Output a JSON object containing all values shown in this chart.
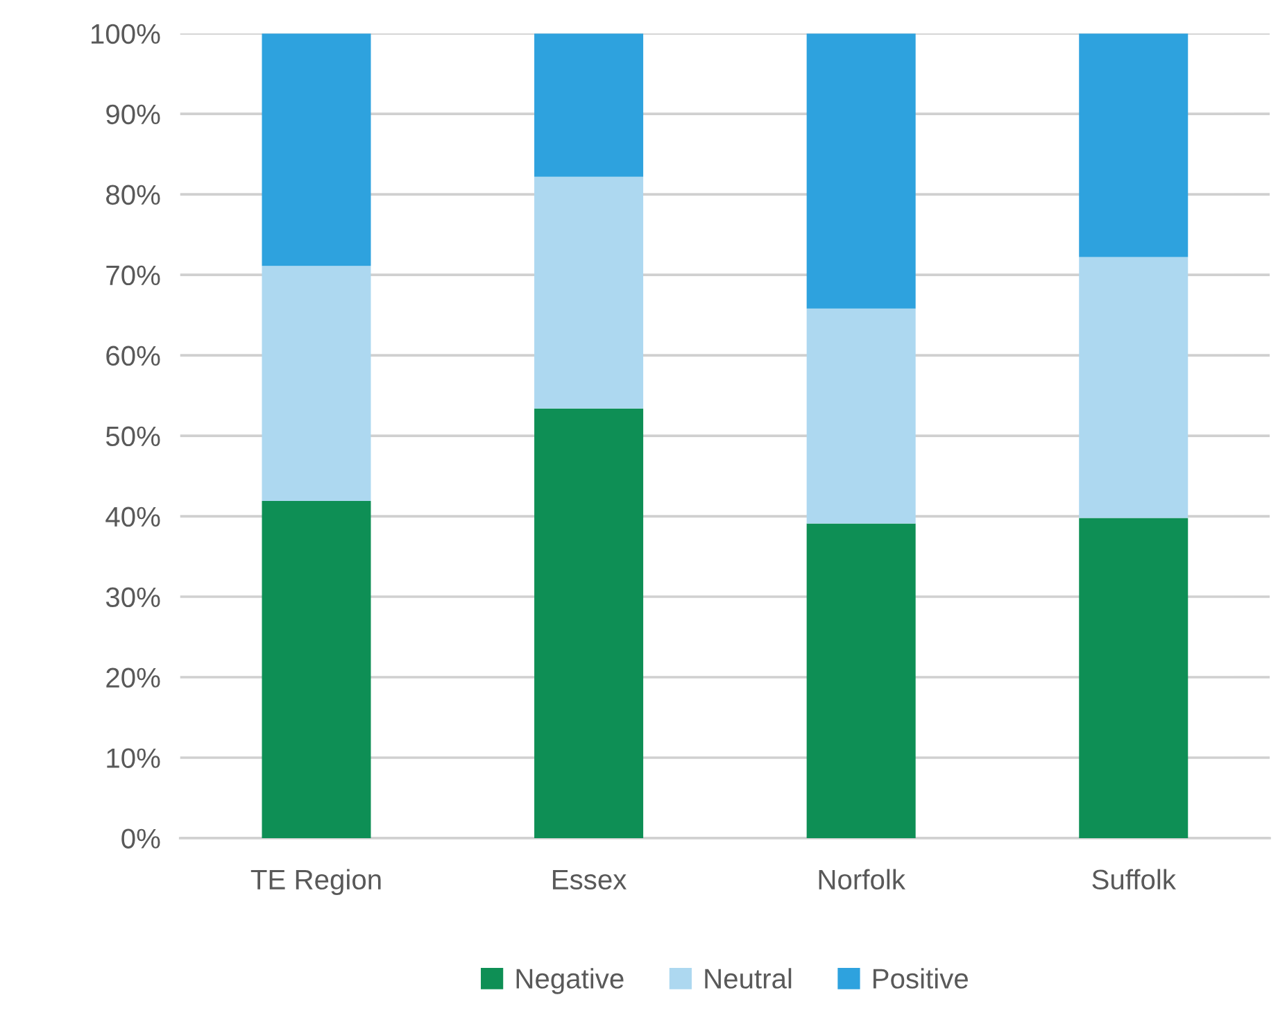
{
  "chart_data": {
    "type": "bar",
    "stacked": true,
    "categories": [
      "TE Region",
      "Essex",
      "Norfolk",
      "Suffolk"
    ],
    "series": [
      {
        "name": "Negative",
        "color": "#0e8f55",
        "values": [
          41.9,
          53.4,
          39.1,
          39.8
        ]
      },
      {
        "name": "Neutral",
        "color": "#add8f0",
        "values": [
          29.2,
          28.8,
          26.7,
          32.4
        ]
      },
      {
        "name": "Positive",
        "color": "#2ea2de",
        "values": [
          28.9,
          17.8,
          34.2,
          27.8
        ]
      }
    ],
    "ylim": [
      0,
      100
    ],
    "yticks": [
      {
        "value": 0,
        "label": "0%"
      },
      {
        "value": 10,
        "label": "10%"
      },
      {
        "value": 20,
        "label": "20%"
      },
      {
        "value": 30,
        "label": "30%"
      },
      {
        "value": 40,
        "label": "40%"
      },
      {
        "value": 50,
        "label": "50%"
      },
      {
        "value": 60,
        "label": "60%"
      },
      {
        "value": 70,
        "label": "70%"
      },
      {
        "value": 80,
        "label": "80%"
      },
      {
        "value": 90,
        "label": "90%"
      },
      {
        "value": 100,
        "label": "100%"
      }
    ],
    "grid": "y",
    "legend": "bottom"
  }
}
